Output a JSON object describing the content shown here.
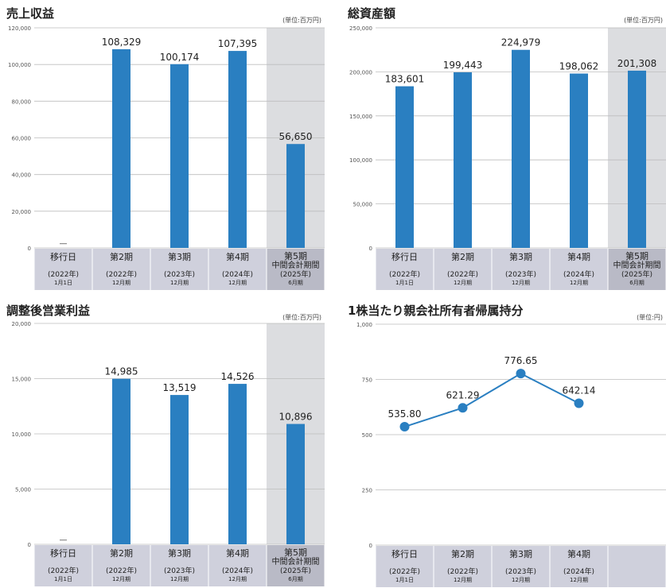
{
  "chart_data": [
    {
      "type": "bar",
      "title": "売上収益",
      "unit": "(単位:百万円)",
      "ylim": [
        0,
        120000
      ],
      "yticks": [
        "0",
        "20,000",
        "40,000",
        "60,000",
        "80,000",
        "100,000",
        "120,000"
      ],
      "categories": [
        {
          "main": "移行日",
          "sub": "2022年",
          "sub2": "1月1日"
        },
        {
          "main": "第2期",
          "sub": "2022年",
          "sub2": "12月期"
        },
        {
          "main": "第3期",
          "sub": "2023年",
          "sub2": "12月期"
        },
        {
          "main": "第4期",
          "sub": "2024年",
          "sub2": "12月期"
        },
        {
          "main": "第5期",
          "main2": "中間会計期間",
          "sub": "2025年",
          "sub2": "6月期"
        }
      ],
      "values": [
        null,
        108329,
        100174,
        107395,
        56650
      ],
      "value_labels": [
        "―",
        "108,329",
        "100,174",
        "107,395",
        "56,650"
      ],
      "highlight_last": true
    },
    {
      "type": "bar",
      "title": "総資産額",
      "unit": "(単位:百万円)",
      "ylim": [
        0,
        250000
      ],
      "yticks": [
        "0",
        "50,000",
        "100,000",
        "150,000",
        "200,000",
        "250,000"
      ],
      "categories": [
        {
          "main": "移行日",
          "sub": "2022年",
          "sub2": "1月1日"
        },
        {
          "main": "第2期",
          "sub": "2022年",
          "sub2": "12月期"
        },
        {
          "main": "第3期",
          "sub": "2023年",
          "sub2": "12月期"
        },
        {
          "main": "第4期",
          "sub": "2024年",
          "sub2": "12月期"
        },
        {
          "main": "第5期",
          "main2": "中間会計期間",
          "sub": "2025年",
          "sub2": "6月期"
        }
      ],
      "values": [
        183601,
        199443,
        224979,
        198062,
        201308
      ],
      "value_labels": [
        "183,601",
        "199,443",
        "224,979",
        "198,062",
        "201,308"
      ],
      "highlight_last": true
    },
    {
      "type": "bar",
      "title": "調整後営業利益",
      "unit": "(単位:百万円)",
      "ylim": [
        0,
        20000
      ],
      "yticks": [
        "0",
        "5,000",
        "10,000",
        "15,000",
        "20,000"
      ],
      "categories": [
        {
          "main": "移行日",
          "sub": "2022年",
          "sub2": "1月1日"
        },
        {
          "main": "第2期",
          "sub": "2022年",
          "sub2": "12月期"
        },
        {
          "main": "第3期",
          "sub": "2023年",
          "sub2": "12月期"
        },
        {
          "main": "第4期",
          "sub": "2024年",
          "sub2": "12月期"
        },
        {
          "main": "第5期",
          "main2": "中間会計期間",
          "sub": "2025年",
          "sub2": "6月期"
        }
      ],
      "values": [
        null,
        14985,
        13519,
        14526,
        10896
      ],
      "value_labels": [
        "―",
        "14,985",
        "13,519",
        "14,526",
        "10,896"
      ],
      "highlight_last": true
    },
    {
      "type": "line",
      "title": "1株当たり親会社所有者帰属持分",
      "unit": "(単位:円)",
      "ylim": [
        0,
        1000
      ],
      "yticks": [
        "0",
        "250",
        "500",
        "750",
        "1,000"
      ],
      "categories": [
        {
          "main": "移行日",
          "sub": "2022年",
          "sub2": "1月1日"
        },
        {
          "main": "第2期",
          "sub": "2022年",
          "sub2": "12月期"
        },
        {
          "main": "第3期",
          "sub": "2023年",
          "sub2": "12月期"
        },
        {
          "main": "第4期",
          "sub": "2024年",
          "sub2": "12月期"
        }
      ],
      "slots": 5,
      "values": [
        535.8,
        621.29,
        776.65,
        642.14
      ],
      "value_labels": [
        "535.80",
        "621.29",
        "776.65",
        "642.14"
      ],
      "highlight_last": false
    }
  ],
  "colors": {
    "bar": "#2a7fc1",
    "category_band": "#cfd0dc",
    "category_band_highlight": "#b9bac6",
    "highlight_column": "#dcdde0",
    "grid": "#bdbdbd"
  }
}
